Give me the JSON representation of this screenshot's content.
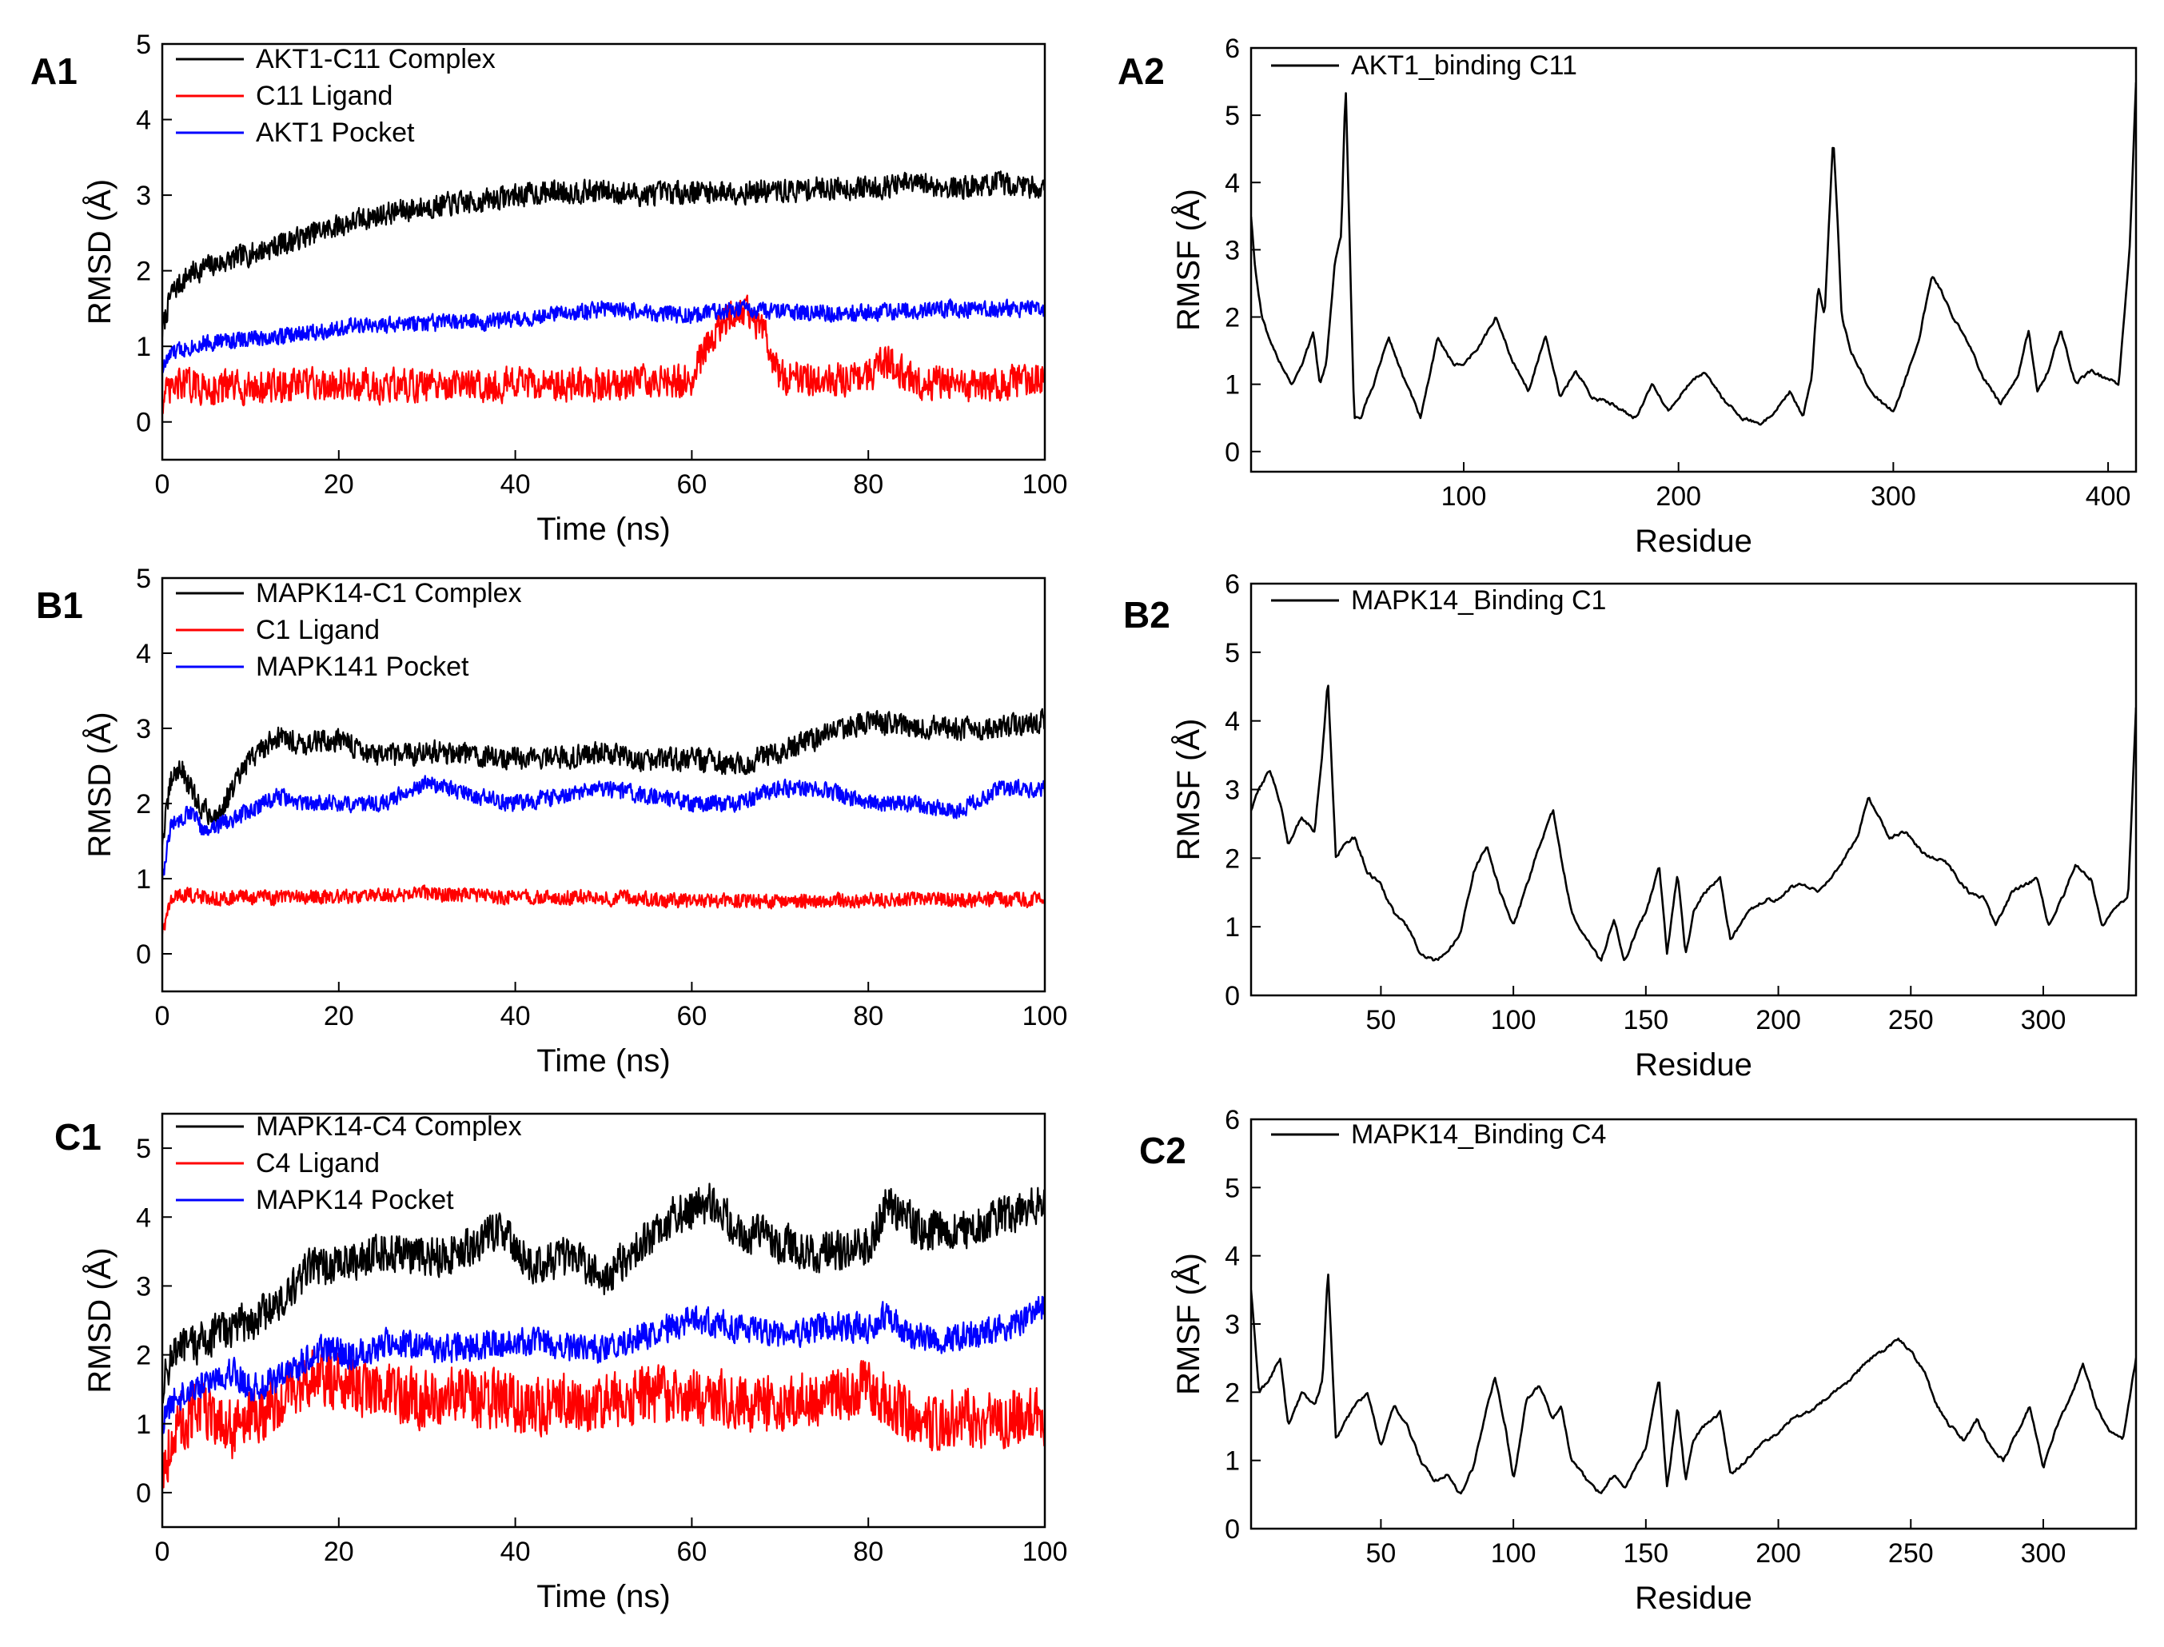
{
  "charts": [
    {
      "id": "A1",
      "panel_label": "A1",
      "type": "line",
      "xlabel": "Time (ns)",
      "ylabel": "RMSD (Å)",
      "xlim": [
        0,
        100
      ],
      "ylim": [
        -0.5,
        5
      ],
      "xticks": [
        0,
        20,
        40,
        60,
        80,
        100
      ],
      "yticks": [
        0,
        1,
        2,
        3,
        4,
        5
      ],
      "series": [
        {
          "name": "AKT1-C11 Complex",
          "color": "#000000",
          "x": [
            0,
            1,
            3,
            5,
            8,
            12,
            16,
            20,
            25,
            30,
            35,
            40,
            45,
            50,
            55,
            60,
            65,
            70,
            75,
            80,
            85,
            90,
            95,
            100
          ],
          "values": [
            1.2,
            1.7,
            1.95,
            2.05,
            2.15,
            2.3,
            2.45,
            2.6,
            2.75,
            2.85,
            2.9,
            3.0,
            3.05,
            3.05,
            3.0,
            3.05,
            3.05,
            3.05,
            3.1,
            3.1,
            3.15,
            3.1,
            3.15,
            3.1
          ]
        },
        {
          "name": "C11 Ligand",
          "color": "#ff0000",
          "x": [
            0,
            2,
            5,
            10,
            20,
            30,
            40,
            50,
            60,
            62,
            64,
            66,
            68,
            70,
            75,
            80,
            82,
            85,
            90,
            95,
            100
          ],
          "values": [
            0.3,
            0.5,
            0.45,
            0.45,
            0.5,
            0.45,
            0.5,
            0.5,
            0.55,
            1.1,
            1.4,
            1.5,
            1.2,
            0.6,
            0.55,
            0.6,
            0.8,
            0.55,
            0.5,
            0.5,
            0.55
          ]
        },
        {
          "name": "AKT1 Pocket",
          "color": "#0000ff",
          "x": [
            0,
            1,
            3,
            5,
            10,
            15,
            20,
            30,
            40,
            50,
            60,
            65,
            70,
            80,
            90,
            100
          ],
          "values": [
            0.7,
            0.9,
            1.0,
            1.05,
            1.1,
            1.15,
            1.25,
            1.3,
            1.35,
            1.5,
            1.4,
            1.5,
            1.45,
            1.45,
            1.5,
            1.5
          ]
        }
      ]
    },
    {
      "id": "A2",
      "panel_label": "A2",
      "type": "line",
      "xlabel": "Residue",
      "ylabel": "RMSF (Å)",
      "xlim": [
        1,
        413
      ],
      "ylim": [
        -0.3,
        6
      ],
      "xticks": [
        100,
        200,
        300,
        400
      ],
      "yticks": [
        0,
        1,
        2,
        3,
        4,
        5,
        6
      ],
      "series": [
        {
          "name": "AKT1_binding C11",
          "color": "#000000",
          "x": [
            1,
            3,
            6,
            10,
            15,
            20,
            25,
            30,
            33,
            36,
            40,
            43,
            45,
            47,
            49,
            52,
            58,
            65,
            72,
            80,
            88,
            95,
            100,
            108,
            115,
            122,
            130,
            138,
            145,
            152,
            160,
            170,
            180,
            188,
            195,
            205,
            212,
            220,
            230,
            238,
            245,
            252,
            258,
            262,
            265,
            268,
            272,
            274,
            276,
            280,
            288,
            295,
            300,
            305,
            312,
            318,
            322,
            328,
            335,
            342,
            350,
            358,
            363,
            367,
            372,
            378,
            385,
            392,
            398,
            405,
            410,
            413
          ],
          "values": [
            3.5,
            2.7,
            2.0,
            1.6,
            1.3,
            1.0,
            1.3,
            1.8,
            1.0,
            1.3,
            2.8,
            3.2,
            5.5,
            3.0,
            0.5,
            0.5,
            1.0,
            1.7,
            1.1,
            0.5,
            1.7,
            1.3,
            1.3,
            1.6,
            2.0,
            1.4,
            0.9,
            1.7,
            0.8,
            1.2,
            0.8,
            0.7,
            0.5,
            1.0,
            0.6,
            1.0,
            1.2,
            0.8,
            0.5,
            0.4,
            0.6,
            0.9,
            0.5,
            1.1,
            2.5,
            2.0,
            4.7,
            3.5,
            2.0,
            1.5,
            1.0,
            0.7,
            0.6,
            1.0,
            1.7,
            2.6,
            2.4,
            2.0,
            1.6,
            1.1,
            0.7,
            1.1,
            1.8,
            0.9,
            1.2,
            1.8,
            1.0,
            1.2,
            1.1,
            1.0,
            3.0,
            5.5
          ]
        }
      ]
    },
    {
      "id": "B1",
      "panel_label": "B1",
      "type": "line",
      "xlabel": "Time (ns)",
      "ylabel": "RMSD (Å)",
      "xlim": [
        0,
        100
      ],
      "ylim": [
        -0.5,
        5
      ],
      "xticks": [
        0,
        20,
        40,
        60,
        80,
        100
      ],
      "yticks": [
        0,
        1,
        2,
        3,
        4,
        5
      ],
      "series": [
        {
          "name": "MAPK14-C1 Complex",
          "color": "#000000",
          "x": [
            0,
            1,
            2,
            4,
            6,
            8,
            10,
            13,
            16,
            20,
            25,
            30,
            35,
            40,
            45,
            50,
            55,
            60,
            65,
            70,
            75,
            80,
            85,
            90,
            95,
            100
          ],
          "values": [
            1.5,
            2.3,
            2.5,
            2.0,
            1.8,
            2.2,
            2.6,
            2.9,
            2.8,
            2.85,
            2.6,
            2.7,
            2.65,
            2.6,
            2.6,
            2.7,
            2.55,
            2.6,
            2.5,
            2.7,
            2.9,
            3.1,
            3.0,
            3.0,
            3.0,
            3.1
          ]
        },
        {
          "name": "C1 Ligand",
          "color": "#ff0000",
          "x": [
            0,
            1,
            2,
            5,
            10,
            20,
            30,
            40,
            50,
            60,
            70,
            80,
            90,
            100
          ],
          "values": [
            0.3,
            0.7,
            0.8,
            0.75,
            0.75,
            0.75,
            0.8,
            0.75,
            0.75,
            0.7,
            0.7,
            0.72,
            0.72,
            0.72
          ]
        },
        {
          "name": "MAPK141 Pocket",
          "color": "#0000ff",
          "x": [
            0,
            1,
            3,
            5,
            8,
            10,
            13,
            16,
            20,
            25,
            30,
            35,
            40,
            45,
            50,
            55,
            60,
            65,
            70,
            75,
            80,
            85,
            90,
            95,
            100
          ],
          "values": [
            1.0,
            1.7,
            1.9,
            1.6,
            1.8,
            1.9,
            2.1,
            2.0,
            2.0,
            2.0,
            2.3,
            2.1,
            2.0,
            2.1,
            2.2,
            2.1,
            2.0,
            2.0,
            2.2,
            2.2,
            2.0,
            2.0,
            1.9,
            2.2,
            2.2
          ]
        }
      ]
    },
    {
      "id": "B2",
      "panel_label": "B2",
      "type": "line",
      "xlabel": "Residue",
      "ylabel": "RMSF (Å)",
      "xlim": [
        1,
        335
      ],
      "ylim": [
        0,
        6
      ],
      "xticks": [
        50,
        100,
        150,
        200,
        250,
        300
      ],
      "yticks": [
        0,
        1,
        2,
        3,
        4,
        5,
        6
      ],
      "series": [
        {
          "name": "MAPK14_Binding C1",
          "color": "#000000",
          "x": [
            1,
            4,
            8,
            12,
            15,
            20,
            25,
            28,
            30,
            33,
            36,
            40,
            45,
            50,
            55,
            60,
            65,
            70,
            75,
            80,
            85,
            90,
            95,
            100,
            105,
            110,
            115,
            118,
            122,
            128,
            133,
            138,
            142,
            146,
            150,
            155,
            158,
            162,
            165,
            168,
            172,
            178,
            182,
            188,
            195,
            200,
            205,
            210,
            215,
            220,
            225,
            230,
            234,
            238,
            242,
            248,
            254,
            258,
            262,
            268,
            272,
            278,
            282,
            288,
            292,
            298,
            302,
            308,
            312,
            318,
            322,
            328,
            332,
            335
          ],
          "values": [
            2.7,
            3.0,
            3.3,
            2.8,
            2.2,
            2.6,
            2.4,
            3.6,
            4.6,
            2.0,
            2.2,
            2.3,
            1.8,
            1.6,
            1.2,
            1.0,
            0.6,
            0.5,
            0.6,
            0.9,
            1.8,
            2.2,
            1.5,
            1.0,
            1.6,
            2.2,
            2.7,
            2.0,
            1.2,
            0.8,
            0.5,
            1.1,
            0.5,
            0.9,
            1.2,
            1.9,
            0.6,
            1.8,
            0.6,
            1.2,
            1.5,
            1.7,
            0.8,
            1.2,
            1.4,
            1.4,
            1.6,
            1.6,
            1.5,
            1.7,
            2.0,
            2.3,
            2.9,
            2.6,
            2.3,
            2.4,
            2.1,
            2.0,
            2.0,
            1.7,
            1.5,
            1.4,
            1.0,
            1.5,
            1.6,
            1.7,
            1.0,
            1.5,
            1.9,
            1.7,
            1.0,
            1.3,
            1.4,
            4.2
          ]
        }
      ]
    },
    {
      "id": "C1",
      "panel_label": "C1",
      "type": "line",
      "xlabel": "Time (ns)",
      "ylabel": "RMSD (Å)",
      "xlim": [
        0,
        100
      ],
      "ylim": [
        -0.5,
        5.5
      ],
      "xticks": [
        0,
        20,
        40,
        60,
        80,
        100
      ],
      "yticks": [
        0,
        1,
        2,
        3,
        4,
        5
      ],
      "series": [
        {
          "name": "MAPK14-C4 Complex",
          "color": "#000000",
          "x": [
            0,
            1,
            3,
            6,
            10,
            14,
            17,
            20,
            25,
            30,
            35,
            38,
            42,
            46,
            50,
            54,
            58,
            62,
            66,
            70,
            75,
            80,
            82,
            86,
            90,
            95,
            100
          ],
          "values": [
            1.5,
            2.0,
            2.1,
            2.3,
            2.5,
            2.8,
            3.3,
            3.3,
            3.5,
            3.4,
            3.6,
            3.8,
            3.3,
            3.4,
            3.1,
            3.6,
            4.0,
            4.2,
            3.8,
            3.6,
            3.5,
            3.6,
            4.2,
            3.8,
            3.8,
            4.0,
            4.2
          ]
        },
        {
          "name": "C4 Ligand",
          "color": "#ff0000",
          "x": [
            0,
            1,
            3,
            5,
            8,
            11,
            14,
            17,
            20,
            25,
            30,
            35,
            40,
            45,
            50,
            55,
            60,
            65,
            70,
            75,
            80,
            83,
            86,
            90,
            95,
            100
          ],
          "values": [
            0.3,
            0.8,
            1.1,
            1.2,
            0.9,
            1.1,
            1.4,
            1.7,
            1.6,
            1.4,
            1.4,
            1.4,
            1.3,
            1.3,
            1.3,
            1.4,
            1.4,
            1.3,
            1.3,
            1.4,
            1.5,
            1.3,
            1.0,
            1.1,
            1.1,
            1.1
          ]
        },
        {
          "name": "MAPK14 Pocket",
          "color": "#0000ff",
          "x": [
            0,
            1,
            3,
            5,
            8,
            10,
            14,
            18,
            22,
            26,
            30,
            35,
            40,
            45,
            50,
            55,
            60,
            65,
            70,
            75,
            80,
            82,
            84,
            88,
            92,
            96,
            100
          ],
          "values": [
            1.0,
            1.3,
            1.5,
            1.6,
            1.8,
            1.5,
            1.7,
            2.1,
            2.0,
            2.2,
            2.1,
            2.1,
            2.2,
            2.1,
            2.1,
            2.3,
            2.5,
            2.4,
            2.3,
            2.4,
            2.4,
            2.6,
            2.3,
            2.2,
            2.3,
            2.4,
            2.7
          ]
        }
      ]
    },
    {
      "id": "C2",
      "panel_label": "C2",
      "type": "line",
      "xlabel": "Residue",
      "ylabel": "RMSF (Å)",
      "xlim": [
        1,
        335
      ],
      "ylim": [
        0,
        6
      ],
      "xticks": [
        50,
        100,
        150,
        200,
        250,
        300
      ],
      "yticks": [
        0,
        1,
        2,
        3,
        4,
        5,
        6
      ],
      "series": [
        {
          "name": "MAPK14_Binding C4",
          "color": "#000000",
          "x": [
            1,
            4,
            8,
            12,
            15,
            20,
            25,
            28,
            30,
            33,
            37,
            40,
            45,
            50,
            55,
            60,
            65,
            70,
            75,
            80,
            85,
            90,
            93,
            97,
            100,
            105,
            110,
            115,
            118,
            122,
            128,
            133,
            138,
            142,
            146,
            150,
            155,
            158,
            162,
            165,
            168,
            172,
            178,
            182,
            188,
            195,
            200,
            205,
            210,
            215,
            220,
            225,
            230,
            235,
            240,
            245,
            250,
            255,
            260,
            265,
            270,
            275,
            280,
            285,
            290,
            295,
            300,
            305,
            310,
            315,
            320,
            325,
            330,
            335
          ],
          "values": [
            3.5,
            2.0,
            2.2,
            2.5,
            1.5,
            2.0,
            1.8,
            2.2,
            3.8,
            1.3,
            1.6,
            1.8,
            2.0,
            1.2,
            1.8,
            1.5,
            1.0,
            0.7,
            0.8,
            0.5,
            0.9,
            1.8,
            2.2,
            1.5,
            0.7,
            1.9,
            2.1,
            1.6,
            1.8,
            1.0,
            0.7,
            0.5,
            0.8,
            0.6,
            0.9,
            1.2,
            2.2,
            0.6,
            1.8,
            0.7,
            1.3,
            1.5,
            1.7,
            0.8,
            1.0,
            1.3,
            1.4,
            1.6,
            1.7,
            1.8,
            2.0,
            2.1,
            2.3,
            2.5,
            2.6,
            2.8,
            2.6,
            2.3,
            1.8,
            1.5,
            1.3,
            1.6,
            1.2,
            1.0,
            1.4,
            1.8,
            0.9,
            1.5,
            1.9,
            2.4,
            1.8,
            1.4,
            1.3,
            2.5
          ]
        }
      ]
    }
  ],
  "chart_data": [
    {
      "id": "A1",
      "type": "line",
      "title": "A1",
      "xlabel": "Time (ns)",
      "ylabel": "RMSD (Å)",
      "legend": [
        "AKT1-C11 Complex",
        "C11 Ligand",
        "AKT1 Pocket"
      ]
    },
    {
      "id": "A2",
      "type": "line",
      "title": "A2",
      "xlabel": "Residue",
      "ylabel": "RMSF (Å)",
      "legend": [
        "AKT1_binding C11"
      ]
    },
    {
      "id": "B1",
      "type": "line",
      "title": "B1",
      "xlabel": "Time (ns)",
      "ylabel": "RMSD (Å)",
      "legend": [
        "MAPK14-C1 Complex",
        "C1 Ligand",
        "MAPK141 Pocket"
      ]
    },
    {
      "id": "B2",
      "type": "line",
      "title": "B2",
      "xlabel": "Residue",
      "ylabel": "RMSF (Å)",
      "legend": [
        "MAPK14_Binding C1"
      ]
    },
    {
      "id": "C1",
      "type": "line",
      "title": "C1",
      "xlabel": "Time (ns)",
      "ylabel": "RMSD (Å)",
      "legend": [
        "MAPK14-C4 Complex",
        "C4 Ligand",
        "MAPK14 Pocket"
      ]
    },
    {
      "id": "C2",
      "type": "line",
      "title": "C2",
      "xlabel": "Residue",
      "ylabel": "RMSF (Å)",
      "legend": [
        "MAPK14_Binding C4"
      ]
    }
  ]
}
